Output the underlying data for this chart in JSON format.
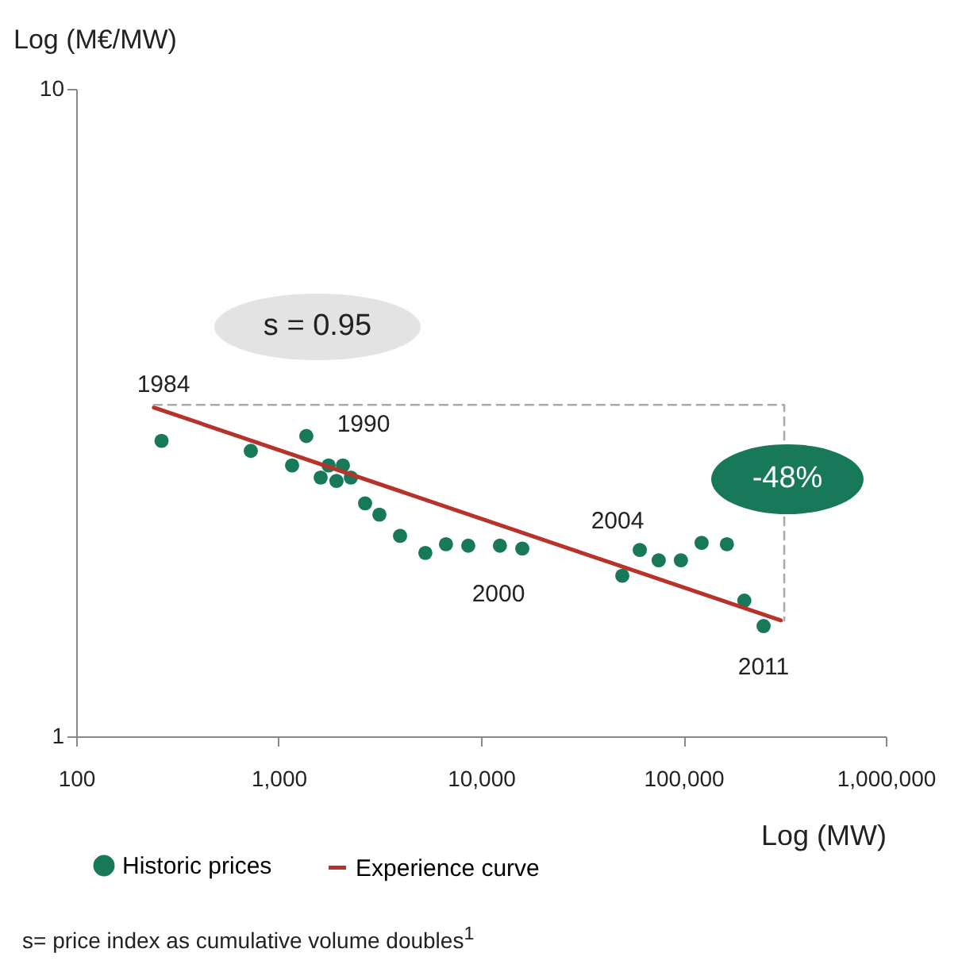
{
  "chart_data": {
    "type": "scatter",
    "xlabel": "Log (MW)",
    "ylabel": "Log (M€/MW)",
    "log": "xy",
    "xlim": [
      100,
      1000000
    ],
    "ylim": [
      1,
      10
    ],
    "xticks": [
      100,
      {
        "value": 1000,
        "label": "1,000"
      },
      {
        "value": 10000,
        "label": "10,000"
      },
      {
        "value": 100000,
        "label": "100,000"
      },
      {
        "value": 1000000,
        "label": "1,000,000"
      }
    ],
    "yticks": [
      1,
      10
    ],
    "grid": false,
    "legend": "bottom",
    "series": [
      {
        "name": "Historic prices",
        "marker": "circle",
        "color": "#17795a",
        "x": [
          264,
          729,
          1166,
          1371,
          1614,
          1767,
          1932,
          2078,
          2275,
          2675,
          3148,
          3981,
          5309,
          6714,
          8650,
          12400,
          16000,
          49900,
          60900,
          75500,
          97200,
          123000,
          164000,
          200000,
          249000
        ],
        "values": [
          2.86,
          2.76,
          2.62,
          2.91,
          2.51,
          2.62,
          2.48,
          2.62,
          2.51,
          2.29,
          2.2,
          2.04,
          1.92,
          1.98,
          1.97,
          1.97,
          1.95,
          1.77,
          1.94,
          1.87,
          1.87,
          1.99,
          1.98,
          1.62,
          1.48
        ]
      },
      {
        "name": "Experience curve",
        "type": "line",
        "marker": "none",
        "color": "#b8322a",
        "line_style": "solid",
        "x": [
          242,
          303000
        ],
        "values": [
          3.22,
          1.51
        ]
      },
      {
        "type": "line",
        "marker": "none",
        "color": "#aaaaaa",
        "line_style": "dashed",
        "x": [
          242,
          315000,
          315000
        ],
        "values": [
          3.25,
          3.25,
          1.51
        ]
      }
    ],
    "annotations": [
      "1984",
      "1990",
      "2000",
      "2004",
      "2011",
      "s = 0.95",
      "-48%",
      "s= price index as cumulative volume doubles$^{1}$"
    ]
  }
}
